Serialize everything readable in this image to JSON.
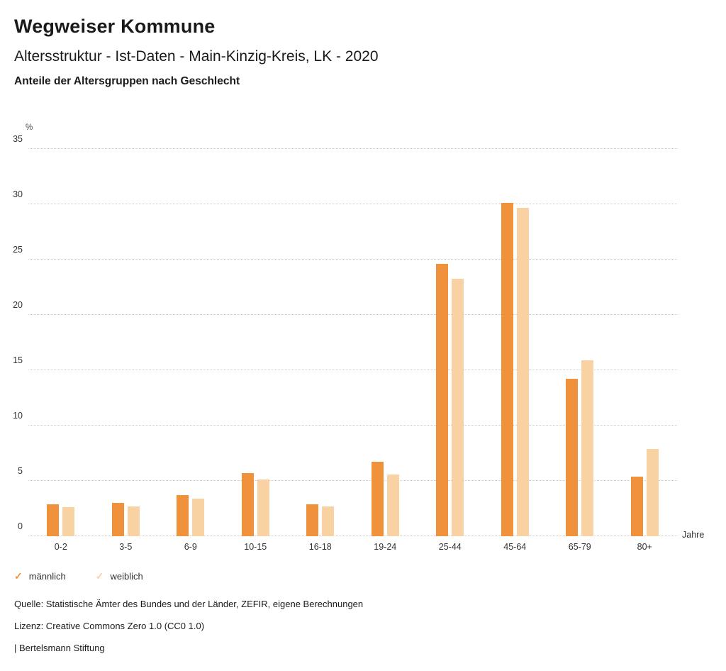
{
  "header": {
    "title": "Wegweiser Kommune",
    "subtitle": "Altersstruktur - Ist-Daten - Main-Kinzig-Kreis, LK - 2020",
    "subheading": "Anteile der Altersgruppen nach Geschlecht"
  },
  "chart_data": {
    "type": "bar",
    "title": "Anteile der Altersgruppen nach Geschlecht",
    "unit_label": "%",
    "x_axis_label": "Jahre",
    "categories": [
      "0-2",
      "3-5",
      "6-9",
      "10-15",
      "16-18",
      "19-24",
      "25-44",
      "45-64",
      "65-79",
      "80+"
    ],
    "series": [
      {
        "name": "männlich",
        "color": "#f0913c",
        "values": [
          2.9,
          3.0,
          3.7,
          5.7,
          2.9,
          6.7,
          24.6,
          30.1,
          14.2,
          5.4
        ]
      },
      {
        "name": "weiblich",
        "color": "#f8d2a2",
        "values": [
          2.6,
          2.7,
          3.4,
          5.1,
          2.7,
          5.6,
          23.3,
          29.7,
          15.9,
          7.9
        ]
      }
    ],
    "ylim": [
      0,
      35
    ],
    "yticks": [
      0,
      5,
      10,
      15,
      20,
      25,
      30,
      35
    ],
    "grid": "horizontal dotted",
    "legend_position": "bottom-left"
  },
  "legend": {
    "items": [
      {
        "check": "✓",
        "label": "männlich",
        "color": "#f0913c"
      },
      {
        "check": "✓",
        "label": "weiblich",
        "color": "#f8d2a2"
      }
    ]
  },
  "footer": {
    "source": "Quelle: Statistische Ämter des Bundes und der Länder, ZEFIR, eigene Berechnungen",
    "license": "Lizenz: Creative Commons Zero 1.0 (CC0 1.0)",
    "attribution": "| Bertelsmann Stiftung"
  }
}
